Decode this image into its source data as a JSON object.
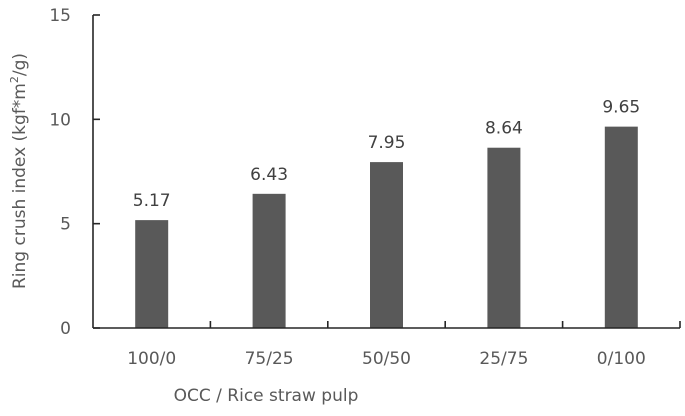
{
  "chart_data": {
    "type": "bar",
    "title": "",
    "xlabel": "OCC / Rice straw pulp",
    "ylabel": "Ring crush index (kgf*m²/g)",
    "ylabel_parts": {
      "main": "Ring crush index (kgf*m",
      "sup": "2",
      "tail": "/g)"
    },
    "categories": [
      "100/0",
      "75/25",
      "50/50",
      "25/75",
      "0/100"
    ],
    "values": [
      5.17,
      6.43,
      7.95,
      8.64,
      9.65
    ],
    "data_labels": [
      "5.17",
      "6.43",
      "7.95",
      "8.64",
      "9.65"
    ],
    "ylim": [
      0,
      15
    ],
    "yticks": [
      0,
      5,
      10,
      15
    ],
    "ytick_labels": [
      "0",
      "5",
      "10",
      "15"
    ],
    "grid": false,
    "legend": null,
    "bar_color": "#595959"
  }
}
